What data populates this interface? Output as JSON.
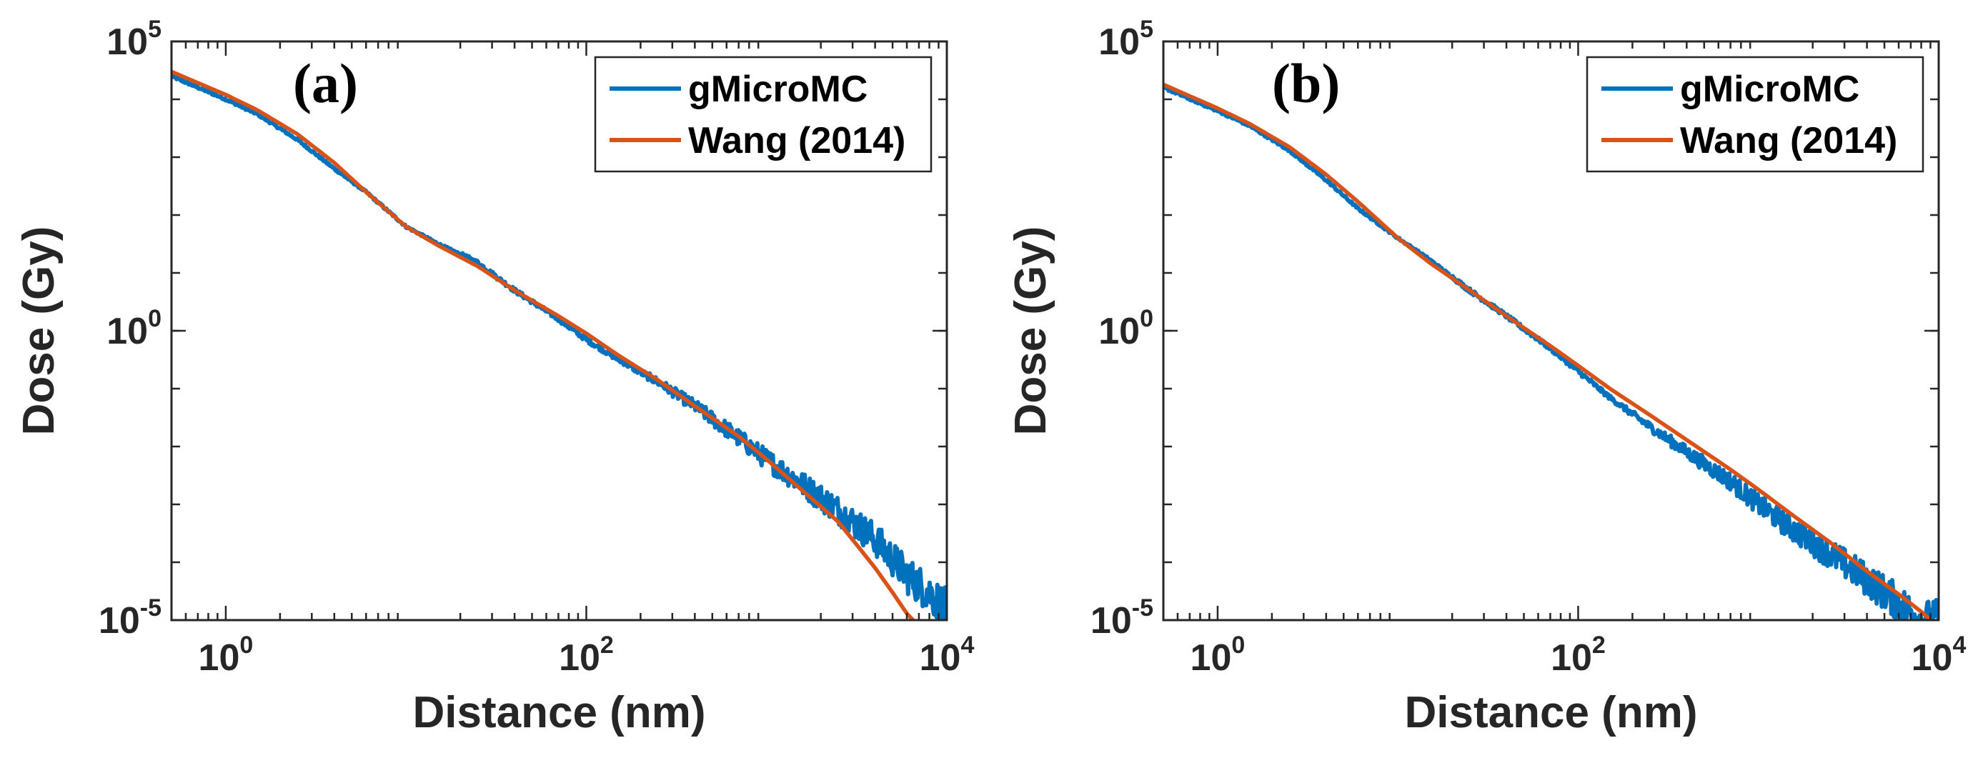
{
  "chart_data": [
    {
      "type": "line",
      "panel_label": "(a)",
      "xlabel": "Distance (nm)",
      "ylabel": "Dose (Gy)",
      "xscale": "log",
      "yscale": "log",
      "xlim": [
        0.5,
        10000
      ],
      "ylim": [
        1e-05,
        100000
      ],
      "xticks": [
        {
          "base": "10",
          "exp": "0",
          "value": 1
        },
        {
          "base": "10",
          "exp": "2",
          "value": 100
        },
        {
          "base": "10",
          "exp": "4",
          "value": 10000
        }
      ],
      "yticks": [
        {
          "base": "10",
          "exp": "-5",
          "value": 1e-05
        },
        {
          "base": "10",
          "exp": "0",
          "value": 1
        },
        {
          "base": "10",
          "exp": "5",
          "value": 100000
        }
      ],
      "legend_position": "top-right",
      "series": [
        {
          "name": "gMicroMC",
          "color": "#0072BD",
          "noisy": true,
          "x": [
            0.5,
            1,
            1.5,
            2.5,
            4,
            6,
            10,
            15,
            25,
            40,
            70,
            100,
            150,
            250,
            400,
            700,
            1000,
            1500,
            2500,
            4000,
            6000,
            8000,
            10000
          ],
          "y": [
            25000,
            10000,
            5500,
            2000,
            630,
            250,
            63,
            32,
            15,
            5,
            1.6,
            0.7,
            0.32,
            0.13,
            0.05,
            0.014,
            0.006,
            0.0025,
            0.0008,
            0.00025,
            6e-05,
            3e-05,
            1.5e-05
          ]
        },
        {
          "name": "Wang (2014)",
          "color": "#D95319",
          "noisy": false,
          "x": [
            0.5,
            1,
            1.5,
            2.5,
            4,
            6,
            10,
            15,
            25,
            40,
            70,
            100,
            150,
            250,
            400,
            700,
            1000,
            1500,
            2500,
            4000,
            5000,
            6000,
            6500
          ],
          "y": [
            30000,
            12000,
            6500,
            2500,
            800,
            250,
            63,
            30,
            13,
            5,
            1.8,
            0.9,
            0.38,
            0.14,
            0.05,
            0.015,
            0.006,
            0.002,
            0.0005,
            8e-05,
            3e-05,
            1.3e-05,
            1e-05
          ]
        }
      ]
    },
    {
      "type": "line",
      "panel_label": "(b)",
      "xlabel": "Distance (nm)",
      "ylabel": "Dose (Gy)",
      "xscale": "log",
      "yscale": "log",
      "xlim": [
        0.5,
        10000
      ],
      "ylim": [
        1e-05,
        100000
      ],
      "xticks": [
        {
          "base": "10",
          "exp": "0",
          "value": 1
        },
        {
          "base": "10",
          "exp": "2",
          "value": 100
        },
        {
          "base": "10",
          "exp": "4",
          "value": 10000
        }
      ],
      "yticks": [
        {
          "base": "10",
          "exp": "-5",
          "value": 1e-05
        },
        {
          "base": "10",
          "exp": "0",
          "value": 1
        },
        {
          "base": "10",
          "exp": "5",
          "value": 100000
        }
      ],
      "legend_position": "top-right",
      "series": [
        {
          "name": "gMicroMC",
          "color": "#0072BD",
          "noisy": true,
          "x": [
            0.5,
            1,
            1.5,
            2.5,
            4,
            6,
            10,
            15,
            25,
            40,
            70,
            100,
            150,
            250,
            400,
            700,
            1000,
            1500,
            2500,
            4000,
            6000,
            8000,
            10000
          ],
          "y": [
            16000,
            6300,
            3500,
            1300,
            400,
            130,
            40,
            17,
            5,
            1.8,
            0.5,
            0.2,
            0.07,
            0.022,
            0.008,
            0.0025,
            0.001,
            0.0004,
            0.00014,
            5e-05,
            2e-05,
            1e-05,
            1e-05
          ]
        },
        {
          "name": "Wang (2014)",
          "color": "#D95319",
          "noisy": false,
          "x": [
            0.5,
            1,
            1.5,
            2.5,
            4,
            6,
            10,
            15,
            25,
            40,
            70,
            100,
            150,
            250,
            400,
            700,
            1000,
            1500,
            2500,
            4000,
            6000,
            8000,
            9000
          ],
          "y": [
            18000,
            7000,
            3800,
            1500,
            500,
            170,
            40,
            15,
            5,
            1.8,
            0.55,
            0.25,
            0.1,
            0.035,
            0.013,
            0.004,
            0.0018,
            0.0007,
            0.00022,
            7e-05,
            2.8e-05,
            1.4e-05,
            1e-05
          ]
        }
      ]
    }
  ]
}
